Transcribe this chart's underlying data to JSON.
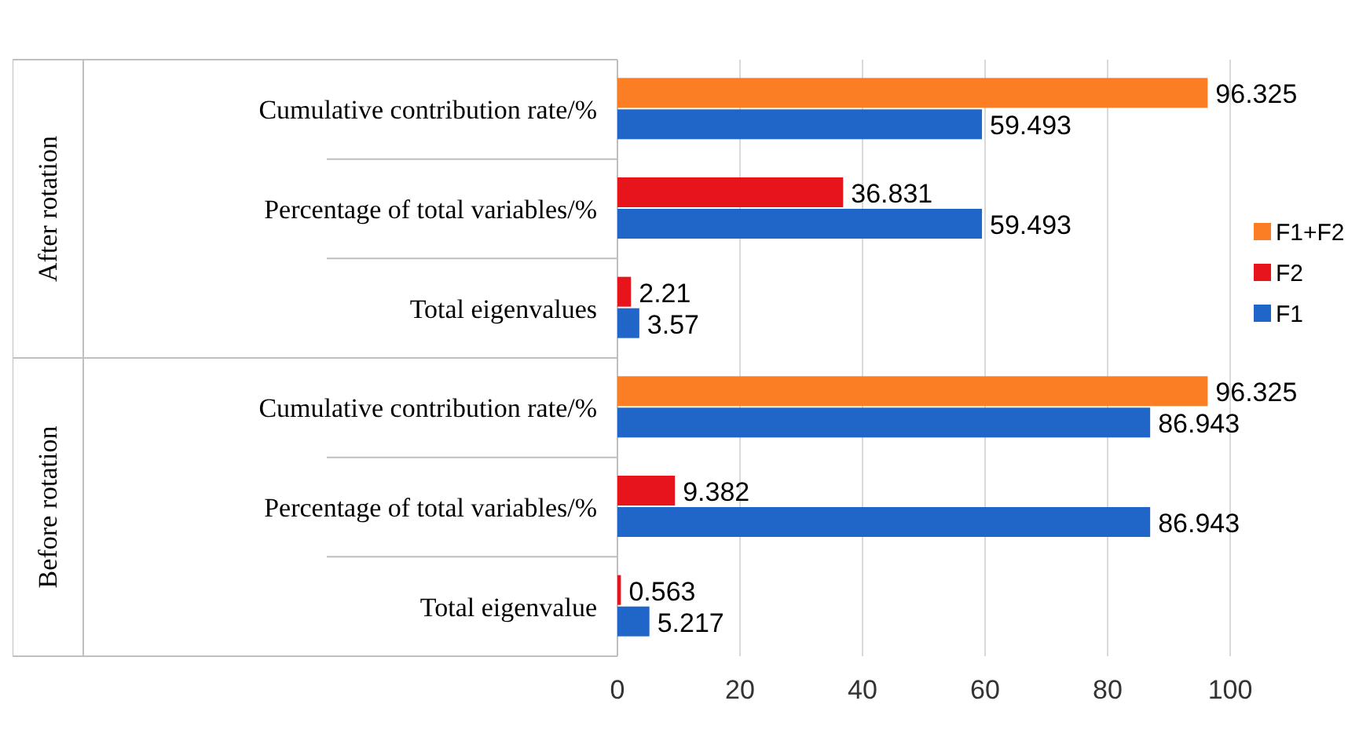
{
  "chart_data": {
    "type": "bar",
    "orientation": "horizontal",
    "categories": [
      "Cumulative contribution rate/%",
      "Percentage of total variables/%",
      "Total eigenvalues",
      "Cumulative contribution rate/%",
      "Percentage of total variables/%",
      "Total eigenvalue"
    ],
    "annotations": [
      "After rotation",
      "Before rotation"
    ],
    "series": [
      {
        "name": "F1",
        "color": "#1f66c8",
        "values": [
          59.493,
          59.493,
          3.57,
          86.943,
          86.943,
          5.217
        ]
      },
      {
        "name": "F2",
        "color": "#e8141c",
        "values": [
          null,
          36.831,
          2.21,
          null,
          9.382,
          0.563
        ]
      },
      {
        "name": "F1+F2",
        "color": "#fb7d24",
        "values": [
          96.325,
          null,
          null,
          96.325,
          null,
          null
        ]
      }
    ],
    "xlim": [
      0,
      100
    ],
    "xticks": [
      0,
      20,
      40,
      60,
      80,
      100
    ],
    "grid": "x",
    "legend": "right",
    "data_labels": true
  }
}
